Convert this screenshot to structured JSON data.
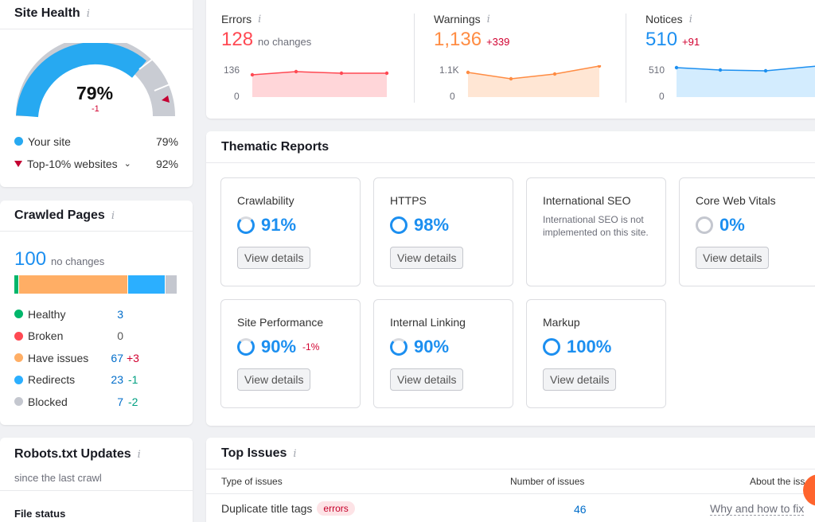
{
  "site_health": {
    "title": "Site Health",
    "score": "79%",
    "delta": "-1",
    "legend": [
      {
        "label": "Your site",
        "value": "79%",
        "color": "#27a9f1"
      },
      {
        "label": "Top-10% websites",
        "value": "92%",
        "color": "#c40032"
      }
    ]
  },
  "crawled_pages": {
    "title": "Crawled Pages",
    "total": "100",
    "total_note": "no changes",
    "rows": [
      {
        "label": "Healthy",
        "value": "3",
        "delta": "",
        "color": "#00b66b"
      },
      {
        "label": "Broken",
        "value": "0",
        "delta": "",
        "color": "#ff4953"
      },
      {
        "label": "Have issues",
        "value": "67",
        "delta": "+3",
        "color": "#ffae65"
      },
      {
        "label": "Redirects",
        "value": "23",
        "delta": "-1",
        "color": "#2bafff"
      },
      {
        "label": "Blocked",
        "value": "7",
        "delta": "-2",
        "color": "#c4c7cf"
      }
    ]
  },
  "robots": {
    "title": "Robots.txt Updates",
    "subtitle": "since the last crawl",
    "file_status": "File status"
  },
  "metrics": [
    {
      "label": "Errors",
      "value": "128",
      "note": "no changes",
      "top": "136",
      "bottom": "0",
      "color": "#ff4953"
    },
    {
      "label": "Warnings",
      "value": "1,136",
      "note": "+339",
      "top": "1.1K",
      "bottom": "0",
      "color": "#ff8c43"
    },
    {
      "label": "Notices",
      "value": "510",
      "note": "+91",
      "top": "510",
      "bottom": "0",
      "color": "#1c8ff0"
    }
  ],
  "thematic": {
    "title": "Thematic Reports",
    "view_label": "View details",
    "cards": [
      {
        "title": "Crawlability",
        "pct": "91%",
        "delta": ""
      },
      {
        "title": "HTTPS",
        "pct": "98%",
        "delta": ""
      },
      {
        "title": "International SEO",
        "note": "International SEO is not implemented on this site."
      },
      {
        "title": "Core Web Vitals",
        "pct": "0%",
        "delta": ""
      },
      {
        "title": "Site Performance",
        "pct": "90%",
        "delta": "-1%"
      },
      {
        "title": "Internal Linking",
        "pct": "90%",
        "delta": ""
      },
      {
        "title": "Markup",
        "pct": "100%",
        "delta": ""
      }
    ]
  },
  "top_issues": {
    "title": "Top Issues",
    "columns": [
      "Type of issues",
      "Number of issues",
      "About the iss"
    ],
    "row": {
      "name": "Duplicate title tags",
      "badge": "errors",
      "count": "46",
      "link": "Why and how to fix"
    }
  }
}
